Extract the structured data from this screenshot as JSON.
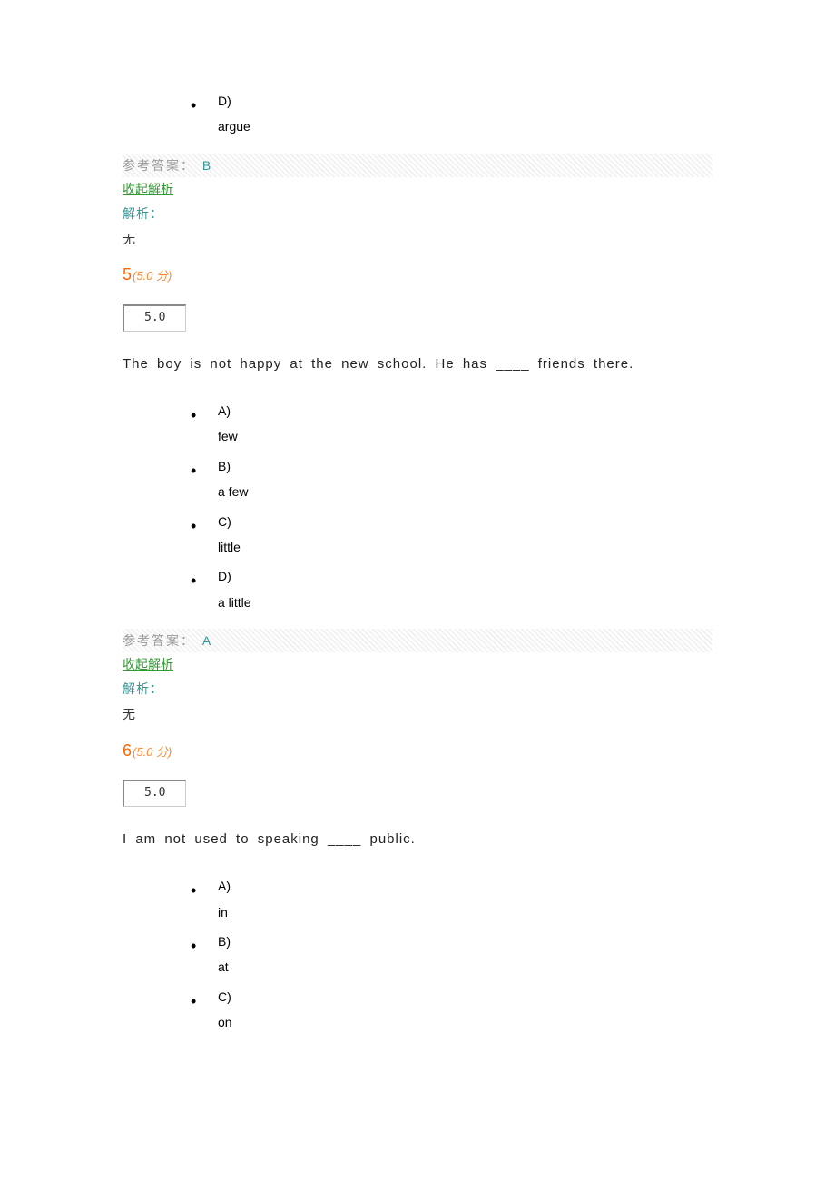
{
  "q4_tail": {
    "options": [
      {
        "letter": "D)",
        "text": "argue"
      }
    ],
    "answer_label": "参考答案：",
    "answer_value": "B",
    "collapse": "收起解析",
    "analysis_label": "解析：",
    "analysis_body": "无"
  },
  "q5": {
    "num": "5",
    "pts": "(5.0 分)",
    "score": "5.0",
    "text": "The boy is not happy at the new school. He has ____ friends there.",
    "options": [
      {
        "letter": "A)",
        "text": "few"
      },
      {
        "letter": "B)",
        "text": "a few"
      },
      {
        "letter": "C)",
        "text": "little"
      },
      {
        "letter": "D)",
        "text": "a little"
      }
    ],
    "answer_label": "参考答案：",
    "answer_value": "A",
    "collapse": "收起解析",
    "analysis_label": "解析：",
    "analysis_body": "无"
  },
  "q6": {
    "num": "6",
    "pts": "(5.0 分)",
    "score": "5.0",
    "text": "I am not used to speaking ____ public.",
    "options": [
      {
        "letter": "A)",
        "text": "in"
      },
      {
        "letter": "B)",
        "text": "at"
      },
      {
        "letter": "C)",
        "text": "on"
      }
    ]
  }
}
